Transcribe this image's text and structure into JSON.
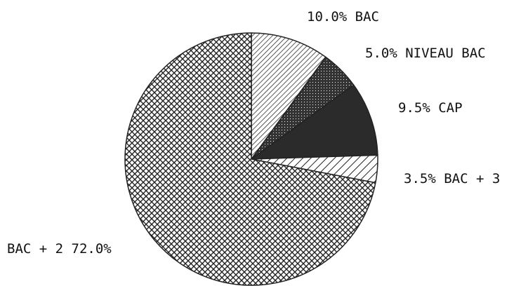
{
  "chart_data": {
    "type": "pie",
    "categories": [
      "BAC",
      "NIVEAU BAC",
      "CAP",
      "BAC + 3",
      "BAC + 2"
    ],
    "values": [
      10.0,
      5.0,
      9.5,
      3.5,
      72.0
    ],
    "labels": [
      "10.0% BAC",
      "5.0% NIVEAU BAC",
      "9.5% CAP",
      "3.5% BAC + 3",
      "BAC + 2  72.0%"
    ],
    "start": "12 o'clock",
    "direction": "clockwise",
    "legend": "none",
    "colors": {
      "ink": "#222222",
      "background": "#ffffff"
    },
    "patterns": [
      "dense-diagonal-hatch",
      "dotted",
      "solid",
      "diagonal-hatch",
      "crosshatch"
    ]
  }
}
